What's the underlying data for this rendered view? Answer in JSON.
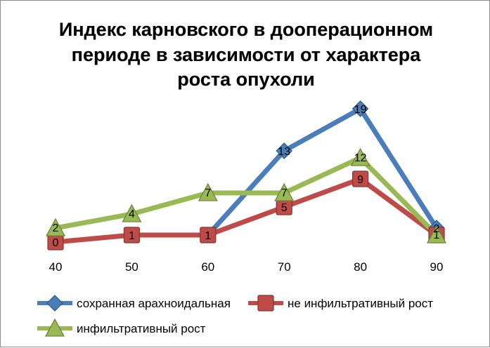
{
  "chart_data": {
    "type": "line",
    "title_lines": [
      "Индекс карновского в дооперационном",
      "периоде в зависимости  от характера",
      "роста опухоли"
    ],
    "categories": [
      "40",
      "50",
      "60",
      "70",
      "80",
      "90"
    ],
    "series": [
      {
        "name": "сохранная арахноидальная",
        "values": [
          null,
          null,
          1,
          13,
          19,
          2
        ],
        "color": "#4a7ebb",
        "marker": "diamond",
        "labels": [
          "",
          "",
          "",
          "13",
          "19",
          "2"
        ]
      },
      {
        "name": "не инфильтративный рост",
        "values": [
          0,
          1,
          1,
          5,
          9,
          1
        ],
        "color": "#be4b48",
        "marker": "square",
        "labels": [
          "0",
          "1",
          "1",
          "5",
          "9",
          ""
        ]
      },
      {
        "name": "инфильтративный рост",
        "values": [
          2,
          4,
          7,
          7,
          12,
          1
        ],
        "color": "#98b954",
        "marker": "triangle",
        "labels": [
          "2",
          "4",
          "7",
          "7",
          "12",
          "1"
        ]
      }
    ],
    "ylim": [
      0,
      20
    ],
    "grid": false,
    "legend_position": "bottom"
  }
}
